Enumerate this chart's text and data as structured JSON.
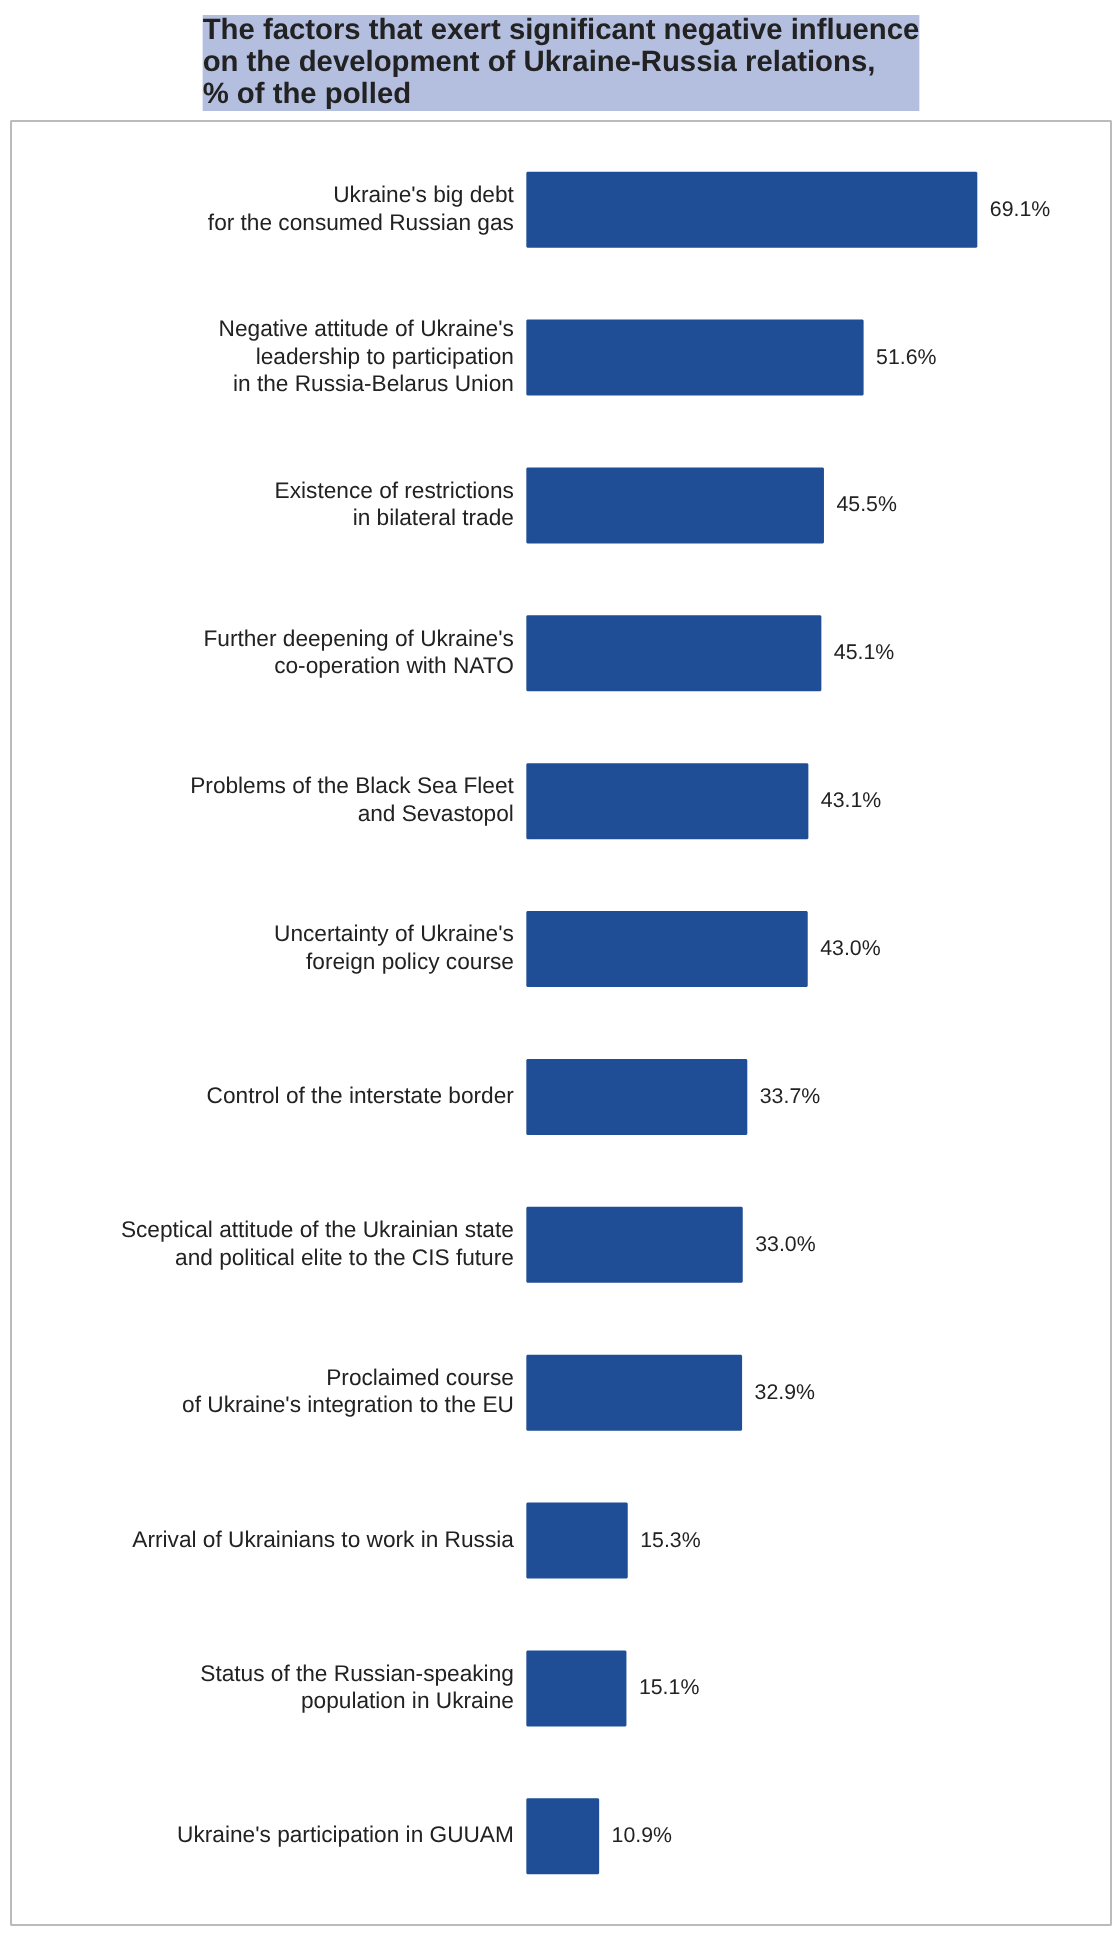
{
  "chart_data": {
    "type": "bar",
    "orientation": "horizontal",
    "title": "The factors that exert significant negative influence\non the development of Ukraine-Russia relations,\n% of the polled",
    "categories": [
      "Ukraine's big debt\nfor the consumed Russian gas",
      "Negative attitude of Ukraine's\nleadership to participation\nin the Russia-Belarus Union",
      "Existence of restrictions\nin bilateral trade",
      "Further deepening of Ukraine's\nco-operation with NATO",
      "Problems of the Black Sea Fleet\nand Sevastopol",
      "Uncertainty of Ukraine's\nforeign policy course",
      "Control of the interstate border",
      "Sceptical attitude of the Ukrainian state\nand political elite to the CIS future",
      "Proclaimed course\nof Ukraine's integration to the EU",
      "Arrival of Ukrainians to work in Russia",
      "Status of the Russian-speaking\npopulation in Ukraine",
      "Ukraine's participation in GUUAM"
    ],
    "values": [
      69.1,
      51.6,
      45.5,
      45.1,
      43.1,
      43.0,
      33.7,
      33.0,
      32.9,
      15.3,
      15.1,
      10.9
    ],
    "value_labels": [
      "69.1%",
      "51.6%",
      "45.5%",
      "45.1%",
      "43.1%",
      "43.0%",
      "33.7%",
      "33.0%",
      "32.9%",
      "15.3%",
      "15.1%",
      "10.9%"
    ],
    "color": "#1f4e96"
  }
}
